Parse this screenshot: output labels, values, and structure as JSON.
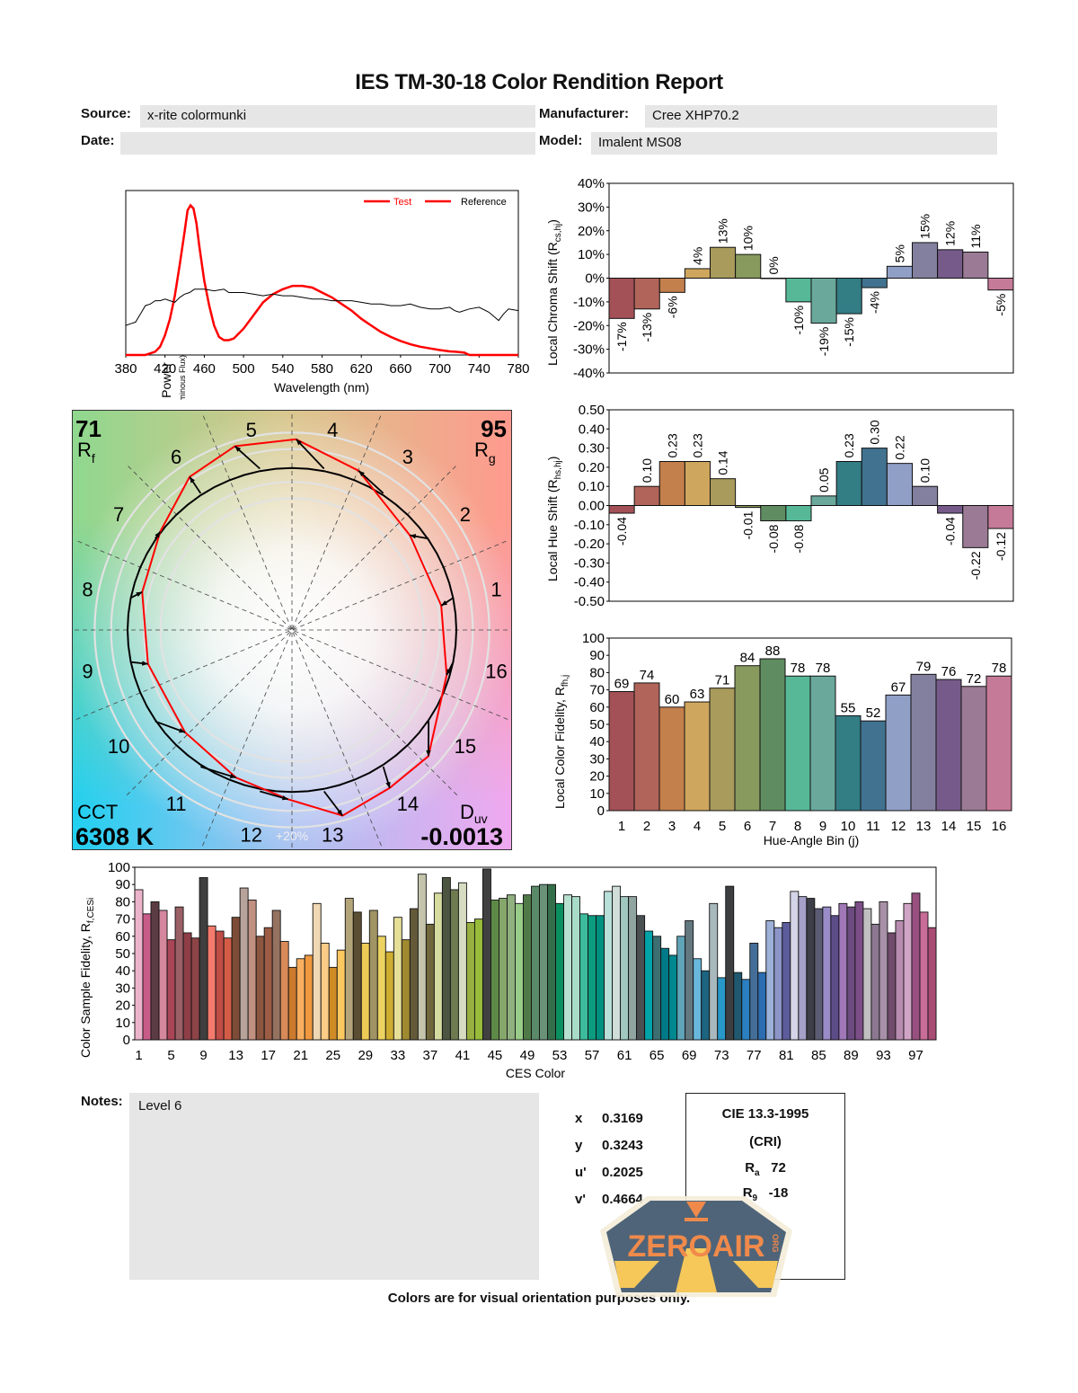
{
  "header": {
    "title": "IES TM-30-18 Color Rendition Report",
    "source_label": "Source:",
    "source_value": "x-rite colormunki",
    "date_label": "Date:",
    "date_value": "",
    "manufacturer_label": "Manufacturer:",
    "manufacturer_value": "Cree XHP70.2",
    "model_label": "Model:",
    "model_value": "Imalent MS08"
  },
  "colors": {
    "test": "#ff0000",
    "reference": "#000000",
    "bins": [
      "#a35057",
      "#b0645a",
      "#c37f4c",
      "#cfa65e",
      "#a99b5c",
      "#889a5e",
      "#5f8c60",
      "#56b897",
      "#6aa89c",
      "#337d85",
      "#41728f",
      "#909fc6",
      "#837f9e",
      "#765b8a",
      "#9a7a94",
      "#c57a98"
    ]
  },
  "chart_data": [
    {
      "id": "spectrum",
      "type": "line",
      "title": "",
      "xlabel": "Wavelength (nm)",
      "ylabel": "Radiant Power",
      "ylabel_sub": "(Equal Luminous Flux)",
      "xlim": [
        380,
        780
      ],
      "xticks": [
        380,
        420,
        460,
        500,
        540,
        580,
        620,
        660,
        700,
        740,
        780
      ],
      "legend": [
        "Test",
        "Reference"
      ],
      "legend_position": "top-right",
      "series": [
        {
          "name": "Test",
          "x": [
            380,
            390,
            400,
            405,
            410,
            415,
            420,
            425,
            430,
            435,
            440,
            443,
            446,
            449,
            452,
            455,
            460,
            465,
            470,
            475,
            480,
            485,
            490,
            495,
            500,
            510,
            520,
            530,
            540,
            550,
            560,
            570,
            580,
            590,
            600,
            610,
            620,
            630,
            640,
            650,
            660,
            670,
            680,
            690,
            700,
            710,
            720,
            725,
            728,
            730,
            740,
            760,
            780
          ],
          "y": [
            0.0,
            0.0,
            0.0,
            0.01,
            0.02,
            0.05,
            0.12,
            0.22,
            0.36,
            0.55,
            0.75,
            0.88,
            0.91,
            0.89,
            0.8,
            0.66,
            0.45,
            0.3,
            0.18,
            0.11,
            0.09,
            0.09,
            0.1,
            0.13,
            0.16,
            0.24,
            0.32,
            0.37,
            0.4,
            0.42,
            0.42,
            0.41,
            0.38,
            0.35,
            0.31,
            0.27,
            0.22,
            0.18,
            0.14,
            0.11,
            0.085,
            0.065,
            0.05,
            0.04,
            0.03,
            0.022,
            0.018,
            0.014,
            0.006,
            0.0,
            0.0,
            0.0,
            0.0
          ]
        },
        {
          "name": "Reference",
          "x": [
            380,
            385,
            390,
            395,
            400,
            405,
            410,
            415,
            420,
            425,
            430,
            435,
            440,
            445,
            450,
            455,
            460,
            470,
            480,
            485,
            490,
            500,
            510,
            520,
            530,
            540,
            550,
            560,
            570,
            580,
            590,
            600,
            610,
            620,
            630,
            640,
            650,
            660,
            670,
            680,
            690,
            700,
            710,
            715,
            720,
            730,
            740,
            750,
            760,
            765,
            770,
            780
          ],
          "y": [
            0.18,
            0.19,
            0.2,
            0.25,
            0.3,
            0.31,
            0.33,
            0.33,
            0.34,
            0.33,
            0.32,
            0.35,
            0.37,
            0.38,
            0.4,
            0.4,
            0.4,
            0.39,
            0.4,
            0.38,
            0.38,
            0.38,
            0.37,
            0.36,
            0.37,
            0.36,
            0.36,
            0.35,
            0.34,
            0.34,
            0.33,
            0.33,
            0.33,
            0.32,
            0.31,
            0.31,
            0.3,
            0.3,
            0.31,
            0.29,
            0.28,
            0.28,
            0.29,
            0.27,
            0.26,
            0.28,
            0.29,
            0.26,
            0.21,
            0.25,
            0.28,
            0.27
          ]
        }
      ]
    },
    {
      "id": "chroma",
      "type": "bar",
      "ylabel": "Local Chroma Shift (R",
      "ylabel_sub": "cs,hj",
      "ylim": [
        -40,
        40
      ],
      "yticks": [
        -40,
        -30,
        -20,
        -10,
        0,
        10,
        20,
        30,
        40
      ],
      "ytick_suffix": "%",
      "categories": [
        1,
        2,
        3,
        4,
        5,
        6,
        7,
        8,
        9,
        10,
        11,
        12,
        13,
        14,
        15,
        16
      ],
      "values": [
        -17,
        -13,
        -6,
        4,
        13,
        10,
        0,
        -10,
        -19,
        -15,
        -4,
        5,
        15,
        12,
        11,
        -5
      ],
      "labels": [
        "-17%",
        "-13%",
        "-6%",
        "4%",
        "13%",
        "10%",
        "0%",
        "-10%",
        "-19%",
        "-15%",
        "-4%",
        "5%",
        "15%",
        "12%",
        "11%",
        "-5%"
      ]
    },
    {
      "id": "hue",
      "type": "bar",
      "ylabel": "Local Hue Shift (R",
      "ylabel_sub": "hs,hj",
      "ylim": [
        -0.5,
        0.5
      ],
      "yticks": [
        "-0.50",
        "-0.40",
        "-0.30",
        "-0.20",
        "-0.10",
        "0.00",
        "0.10",
        "0.20",
        "0.30",
        "0.40",
        "0.50"
      ],
      "categories": [
        1,
        2,
        3,
        4,
        5,
        6,
        7,
        8,
        9,
        10,
        11,
        12,
        13,
        14,
        15,
        16
      ],
      "values": [
        -0.04,
        0.1,
        0.23,
        0.23,
        0.14,
        -0.01,
        -0.08,
        -0.08,
        0.05,
        0.23,
        0.3,
        0.22,
        0.1,
        -0.04,
        -0.22,
        -0.12
      ],
      "labels": [
        "-0.04",
        "0.10",
        "0.23",
        "0.23",
        "0.14",
        "-0.01",
        "-0.08",
        "-0.08",
        "0.05",
        "0.23",
        "0.30",
        "0.22",
        "0.10",
        "-0.04",
        "-0.22",
        "-0.12"
      ]
    },
    {
      "id": "fidelity",
      "type": "bar",
      "ylabel": "Local Color Fidelity, R",
      "ylabel_sub": "fh,j",
      "xlabel": "Hue-Angle Bin (j)",
      "ylim": [
        0,
        100
      ],
      "yticks": [
        0,
        10,
        20,
        30,
        40,
        50,
        60,
        70,
        80,
        90,
        100
      ],
      "categories": [
        "1",
        "2",
        "3",
        "4",
        "5",
        "6",
        "7",
        "8",
        "9",
        "10",
        "11",
        "12",
        "13",
        "14",
        "15",
        "16"
      ],
      "values": [
        69,
        74,
        60,
        63,
        71,
        84,
        88,
        78,
        78,
        55,
        52,
        67,
        79,
        76,
        72,
        78
      ]
    },
    {
      "id": "ces",
      "type": "bar",
      "ylabel": "Color Sample Fidelity, R",
      "ylabel_sub": "f,CESi",
      "xlabel": "CES Color",
      "ylim": [
        0,
        100
      ],
      "yticks": [
        0,
        10,
        20,
        30,
        40,
        50,
        60,
        70,
        80,
        90,
        100
      ],
      "xticks": [
        "1",
        "5",
        "9",
        "13",
        "17",
        "21",
        "25",
        "29",
        "33",
        "37",
        "41",
        "45",
        "49",
        "53",
        "57",
        "61",
        "65",
        "69",
        "73",
        "77",
        "81",
        "85",
        "89",
        "93",
        "97"
      ],
      "values": [
        87,
        73,
        80,
        75,
        58,
        77,
        62,
        59,
        94,
        66,
        63,
        59,
        71,
        88,
        81,
        60,
        65,
        75,
        57,
        42,
        47,
        49,
        79,
        56,
        42,
        52,
        82,
        74,
        56,
        75,
        60,
        51,
        71,
        58,
        76,
        96,
        67,
        85,
        94,
        87,
        91,
        68,
        70,
        99,
        81,
        82,
        84,
        79,
        84,
        89,
        90,
        90,
        79,
        84,
        83,
        73,
        72,
        72,
        86,
        89,
        83,
        83,
        72,
        63,
        60,
        53,
        49,
        60,
        69,
        47,
        40,
        79,
        36,
        89,
        39,
        35,
        56,
        39,
        69,
        65,
        68,
        86,
        83,
        82,
        76,
        77,
        72,
        79,
        77,
        80,
        76,
        67,
        80,
        62,
        69,
        79,
        85,
        74,
        65
      ],
      "colors": [
        "#ecb4cb",
        "#c85c88",
        "#5c3c43",
        "#d5879d",
        "#aa4457",
        "#9a6066",
        "#8f3e48",
        "#8c4447",
        "#3f3f3f",
        "#f47a6d",
        "#c04c46",
        "#d45c47",
        "#7d4c37",
        "#b8a39b",
        "#c09080",
        "#8c5640",
        "#9c5c45",
        "#967260",
        "#d88a58",
        "#cc7a2d",
        "#faaf60",
        "#ef9840",
        "#f0d8b4",
        "#fbcc85",
        "#d18b25",
        "#fcc860",
        "#b3a47a",
        "#5c4e32",
        "#ecca55",
        "#a09464",
        "#ecd260",
        "#cead30",
        "#e6df98",
        "#a08a30",
        "#645a3a",
        "#c4c4ac",
        "#70683c",
        "#d6dba0",
        "#4c5442",
        "#6e7a50",
        "#d6dcc1",
        "#98b040",
        "#98bc3a",
        "#404040",
        "#5e8a48",
        "#86a76c",
        "#90b080",
        "#98cc88",
        "#4f7a48",
        "#5a8a68",
        "#6a9278",
        "#356e4a",
        "#0a9060",
        "#b8e0d0",
        "#a8dcc8",
        "#3cbc9c",
        "#0c9c80",
        "#009080",
        "#b8e0d8",
        "#d0ddd8",
        "#a0c8c0",
        "#90a4a0",
        "#4a5052",
        "#00a4a8",
        "#3c6e72",
        "#007a88",
        "#008890",
        "#60a4b8",
        "#647880",
        "#68b8dc",
        "#1c6480",
        "#a8b8bc",
        "#2898c8",
        "#3c3e40",
        "#205870",
        "#2a80c0",
        "#446e98",
        "#2c6cb0",
        "#9cb0d8",
        "#8c94c8",
        "#5c5c9c",
        "#d4d4e8",
        "#a4a0c8",
        "#3c3e48",
        "#5c5c74",
        "#9a8cc8",
        "#5c4c88",
        "#a078b8",
        "#6c4c80",
        "#7c4e88",
        "#c0c0c0",
        "#8c7890",
        "#a890a8",
        "#724c6c",
        "#b88cb0",
        "#d0a4c4",
        "#985080",
        "#c86c98",
        "#a84c74"
      ]
    }
  ],
  "vector_graphic": {
    "rf_value": "71",
    "rf_label": "R",
    "rf_sub": "f",
    "rg_value": "95",
    "rg_label": "R",
    "rg_sub": "g",
    "cct_label": "CCT",
    "cct_value": "6308 K",
    "duv_label": "D",
    "duv_sub": "uv",
    "duv_value": "-0.0013",
    "ring_label": "+20%",
    "bin_labels": [
      "1",
      "2",
      "3",
      "4",
      "5",
      "6",
      "7",
      "8",
      "9",
      "10",
      "11",
      "12",
      "13",
      "14",
      "15",
      "16"
    ],
    "test_radius_ratio": [
      0.92,
      0.92,
      1.05,
      1.16,
      1.17,
      1.12,
      1.0,
      0.94,
      0.9,
      0.9,
      0.96,
      1.03,
      1.17,
      1.13,
      1.13,
      0.98
    ],
    "hue_shift_deg": [
      -2,
      5,
      11,
      10,
      6,
      0,
      -3,
      -3,
      2,
      10,
      13,
      10,
      4,
      -2,
      -9,
      -5
    ]
  },
  "notes": {
    "label": "Notes:",
    "value": "Level 6"
  },
  "chromaticity": {
    "x_label": "x",
    "x_value": "0.3169",
    "y_label": "y",
    "y_value": "0.3243",
    "u_label": "u'",
    "u_value": "0.2025",
    "v_label": "v'",
    "v_value": "0.4664"
  },
  "cri": {
    "title": "CIE 13.3-1995",
    "subtitle": "(CRI)",
    "ra_label": "R",
    "ra_sub": "a",
    "ra_value": "72",
    "r9_label": "R",
    "r9_sub": "9",
    "r9_value": "-18"
  },
  "watermark": {
    "text": "ZEROAIR",
    "suffix": "ORG"
  },
  "footer": "Colors are for visual orientation purposes only."
}
